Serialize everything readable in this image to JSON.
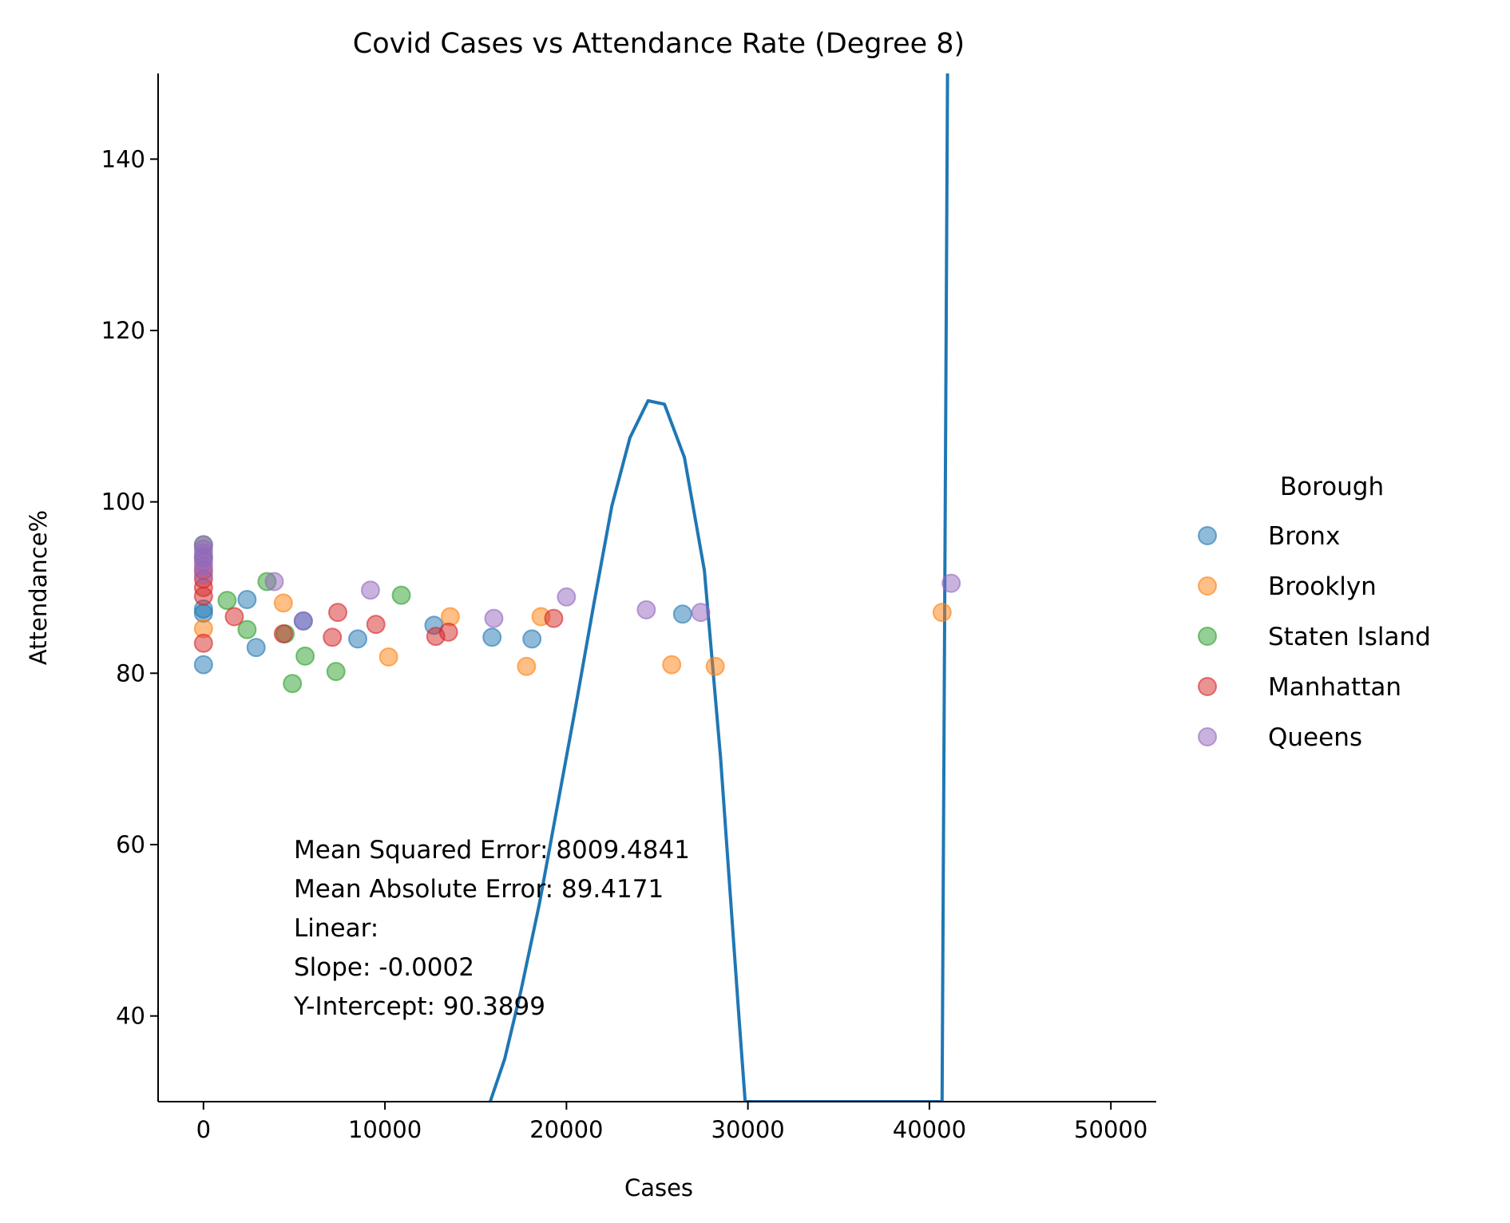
{
  "chart_data": {
    "type": "scatter",
    "title": "Covid Cases vs Attendance Rate (Degree 8)",
    "xlabel": "Cases",
    "ylabel": "Attendance%",
    "xlim": [
      -2500,
      52500
    ],
    "ylim": [
      30,
      150
    ],
    "xticks": [
      0,
      10000,
      20000,
      30000,
      40000,
      50000
    ],
    "yticks": [
      40,
      60,
      80,
      100,
      120,
      140
    ],
    "grid": false,
    "legend": {
      "title": "Borough",
      "placement": "right"
    },
    "series": [
      {
        "name": "Bronx",
        "color": "#1f77b4",
        "points": [
          [
            0,
            81.0
          ],
          [
            0,
            87.0
          ],
          [
            0,
            87.5
          ],
          [
            2400,
            88.6
          ],
          [
            2900,
            83.0
          ],
          [
            5500,
            86.1
          ],
          [
            8500,
            84.0
          ],
          [
            12700,
            85.6
          ],
          [
            15900,
            84.2
          ],
          [
            18100,
            84.0
          ],
          [
            26400,
            86.9
          ]
        ]
      },
      {
        "name": "Brooklyn",
        "color": "#ff7f0e",
        "points": [
          [
            0,
            85.2
          ],
          [
            4400,
            88.2
          ],
          [
            10200,
            81.9
          ],
          [
            13600,
            86.6
          ],
          [
            17800,
            80.8
          ],
          [
            18600,
            86.6
          ],
          [
            25800,
            81.0
          ],
          [
            28200,
            80.8
          ],
          [
            40700,
            87.1
          ]
        ]
      },
      {
        "name": "Staten Island",
        "color": "#2ca02c",
        "points": [
          [
            0,
            95.0
          ],
          [
            0,
            93.5
          ],
          [
            1300,
            88.5
          ],
          [
            2400,
            85.1
          ],
          [
            3500,
            90.7
          ],
          [
            4500,
            84.6
          ],
          [
            4900,
            78.8
          ],
          [
            5600,
            82.0
          ],
          [
            7300,
            80.2
          ],
          [
            10900,
            89.1
          ]
        ]
      },
      {
        "name": "Manhattan",
        "color": "#d62728",
        "points": [
          [
            0,
            83.5
          ],
          [
            0,
            89.0
          ],
          [
            0,
            90.0
          ],
          [
            0,
            91.0
          ],
          [
            0,
            92.0
          ],
          [
            1700,
            86.6
          ],
          [
            4400,
            84.6
          ],
          [
            7100,
            84.2
          ],
          [
            7400,
            87.1
          ],
          [
            9500,
            85.7
          ],
          [
            12800,
            84.3
          ],
          [
            13500,
            84.8
          ],
          [
            19300,
            86.4
          ]
        ]
      },
      {
        "name": "Queens",
        "color": "#9467bd",
        "points": [
          [
            0,
            91.5
          ],
          [
            0,
            92.5
          ],
          [
            0,
            93.0
          ],
          [
            0,
            93.5
          ],
          [
            0,
            94.0
          ],
          [
            0,
            94.5
          ],
          [
            0,
            95.0
          ],
          [
            3900,
            90.7
          ],
          [
            5500,
            86.1
          ],
          [
            9200,
            89.7
          ],
          [
            16000,
            86.4
          ],
          [
            20000,
            88.9
          ],
          [
            24400,
            87.4
          ],
          [
            27400,
            87.1
          ],
          [
            41200,
            90.5
          ]
        ]
      }
    ],
    "fit_curve": {
      "color": "#1f77b4",
      "points": [
        [
          15800,
          30.0
        ],
        [
          16600,
          35.0
        ],
        [
          17500,
          43.0
        ],
        [
          18500,
          53.0
        ],
        [
          19500,
          64.5
        ],
        [
          20500,
          76.0
        ],
        [
          21500,
          88.0
        ],
        [
          22500,
          99.5
        ],
        [
          23500,
          107.5
        ],
        [
          24500,
          111.8
        ],
        [
          25400,
          111.4
        ],
        [
          26500,
          105.2
        ],
        [
          27600,
          92.0
        ],
        [
          28500,
          70.0
        ],
        [
          29500,
          40.0
        ],
        [
          29850,
          30.0
        ],
        [
          40700,
          30.0
        ],
        [
          41000,
          150.0
        ]
      ]
    },
    "annotation": [
      "Mean Squared Error: 8009.4841",
      "Mean Absolute Error: 89.4171",
      "Linear:",
      "Slope: -0.0002",
      "Y-Intercept: 90.3899"
    ]
  }
}
